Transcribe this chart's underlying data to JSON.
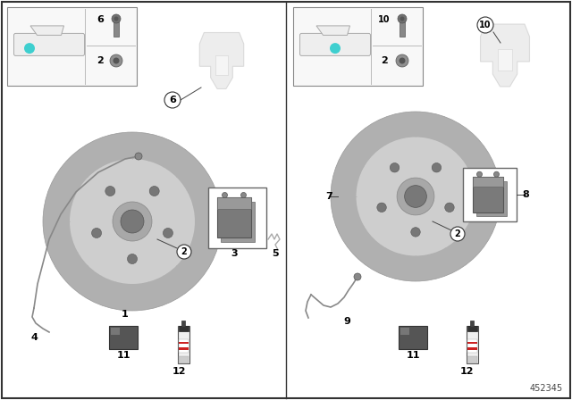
{
  "bg_color": "#ffffff",
  "border_color": "#333333",
  "part_number": "452345",
  "teal_color": "#3ecfcf",
  "can_label_red": "#cc2222",
  "gray_disc_outer": "#b8b8b8",
  "gray_disc_mid": "#d4d4d4",
  "gray_disc_inner": "#c0c0c0",
  "gray_hub": "#989898",
  "gray_hub_dark": "#707070",
  "bracket_color": "#d8d8d8",
  "pad_dark": "#888888",
  "pad_light": "#aaaaaa",
  "wire_color": "#888888",
  "packet_color": "#666666",
  "spring_color": "#aaaaaa",
  "inset_bg": "#f5f5f5",
  "panel_bg": "#f0f0f0"
}
